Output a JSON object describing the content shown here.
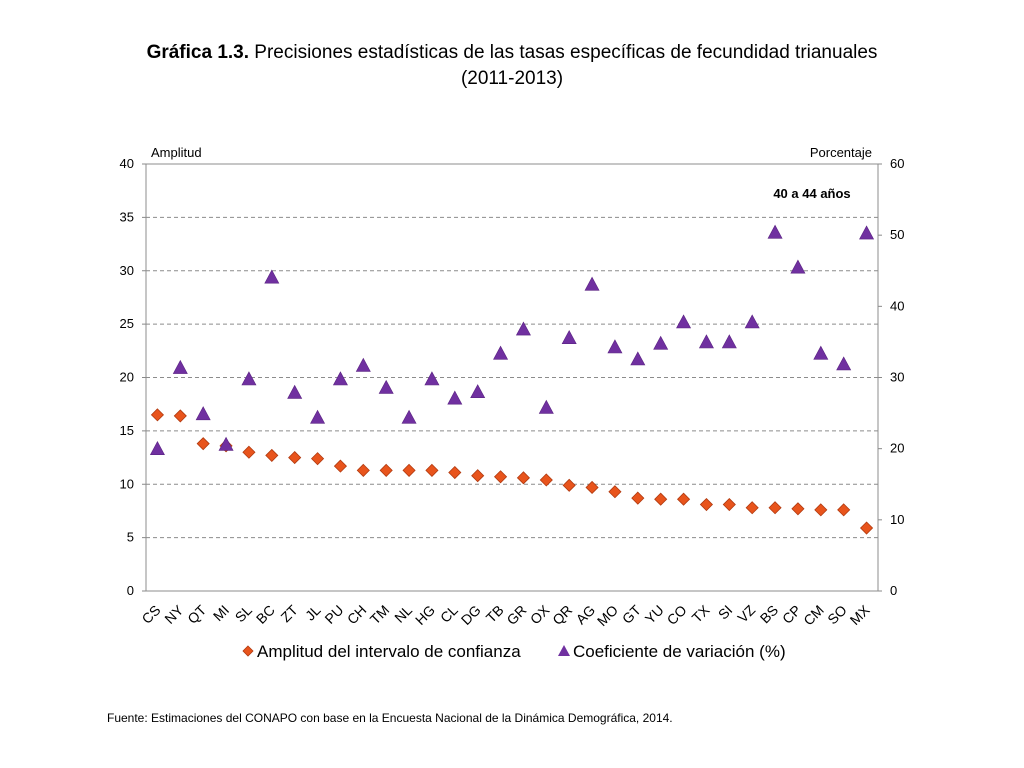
{
  "title": {
    "bold": "Gráfica 1.3.",
    "rest": " Precisiones estadísticas de las tasas específicas de fecundidad trianuales",
    "line2": "(2011-2013)"
  },
  "source": "Fuente: Estimaciones del CONAPO con base en la Encuesta Nacional de la Dinámica Demográfica, 2014.",
  "colors": {
    "diamond": "#E8541C",
    "diamond_stroke": "#B03A10",
    "triangle": "#7030A0",
    "grid": "#8C8C8C"
  },
  "chart_data": {
    "type": "scatter",
    "annotation": "40 a 44 años",
    "y_left_label": "Amplitud",
    "y_right_label": "Porcentaje",
    "y_left_range": [
      0,
      40
    ],
    "y_left_ticks": [
      "0",
      "5",
      "10",
      "15",
      "20",
      "25",
      "30",
      "35",
      "40"
    ],
    "y_right_range": [
      0,
      60
    ],
    "y_right_ticks": [
      "0",
      "10",
      "20",
      "30",
      "40",
      "50",
      "60"
    ],
    "grid": true,
    "legend_position": "bottom",
    "categories": [
      "CS",
      "NY",
      "QT",
      "MI",
      "SL",
      "BC",
      "ZT",
      "JL",
      "PU",
      "CH",
      "TM",
      "NL",
      "HG",
      "CL",
      "DG",
      "TB",
      "GR",
      "OX",
      "QR",
      "AG",
      "MO",
      "GT",
      "YU",
      "CO",
      "TX",
      "SI",
      "VZ",
      "BS",
      "CP",
      "CM",
      "SO",
      "MX"
    ],
    "series": [
      {
        "name": "Amplitud del intervalo de confianza",
        "axis": "left",
        "marker": "diamond",
        "values": [
          16.5,
          16.4,
          13.8,
          13.6,
          13.0,
          12.7,
          12.5,
          12.4,
          11.7,
          11.3,
          11.3,
          11.3,
          11.3,
          11.1,
          10.8,
          10.7,
          10.6,
          10.4,
          9.9,
          9.7,
          9.3,
          8.7,
          8.6,
          8.6,
          8.1,
          8.1,
          7.8,
          7.8,
          7.7,
          7.6,
          7.6,
          5.9
        ]
      },
      {
        "name": "Coeficiente de variación (%)",
        "axis": "right",
        "marker": "triangle",
        "values": [
          20.0,
          31.4,
          24.9,
          20.6,
          29.8,
          44.1,
          27.9,
          24.4,
          29.8,
          31.7,
          28.6,
          24.4,
          29.8,
          27.1,
          28.0,
          33.4,
          36.8,
          25.8,
          35.6,
          43.1,
          34.3,
          32.6,
          34.8,
          37.8,
          35.0,
          35.0,
          37.8,
          50.4,
          45.5,
          33.4,
          31.9,
          50.3
        ]
      }
    ]
  }
}
